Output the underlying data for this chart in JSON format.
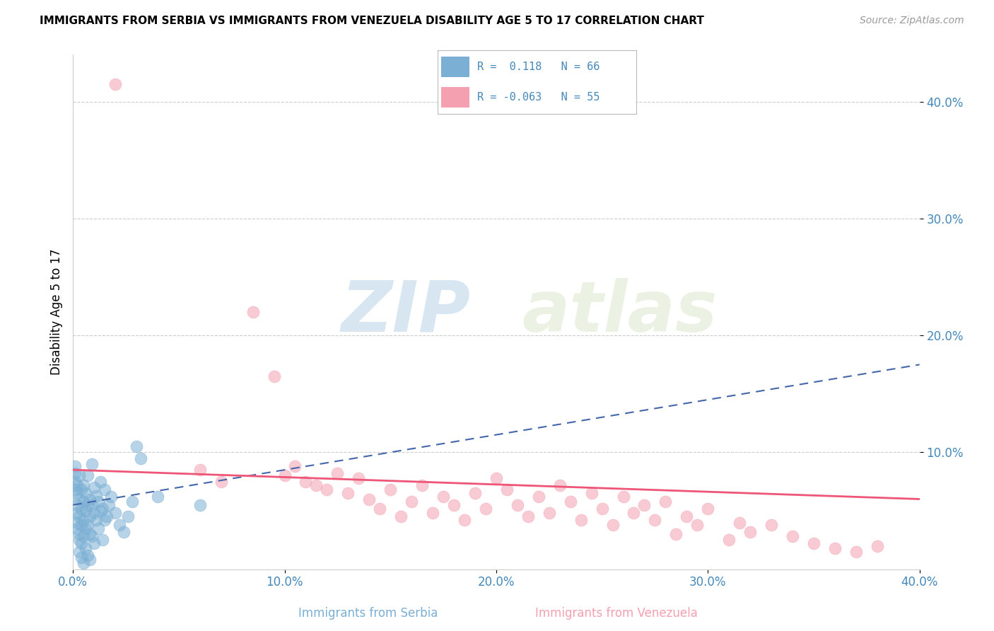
{
  "title": "IMMIGRANTS FROM SERBIA VS IMMIGRANTS FROM VENEZUELA DISABILITY AGE 5 TO 17 CORRELATION CHART",
  "source": "Source: ZipAtlas.com",
  "xlabel_serbia": "Immigrants from Serbia",
  "xlabel_venezuela": "Immigrants from Venezuela",
  "ylabel": "Disability Age 5 to 17",
  "xlim": [
    0.0,
    0.4
  ],
  "ylim": [
    0.0,
    0.44
  ],
  "xticks": [
    0.0,
    0.1,
    0.2,
    0.3,
    0.4
  ],
  "yticks": [
    0.1,
    0.2,
    0.3,
    0.4
  ],
  "serbia_R": 0.118,
  "serbia_N": 66,
  "venezuela_R": -0.063,
  "venezuela_N": 55,
  "serbia_color": "#7BAFD4",
  "venezuela_color": "#F4A0B0",
  "serbia_line_color": "#4466AA",
  "venezuela_line_color": "#EE5577",
  "watermark_color": "#D5E8F0",
  "serbia_points": [
    [
      0.001,
      0.088
    ],
    [
      0.001,
      0.082
    ],
    [
      0.001,
      0.075
    ],
    [
      0.001,
      0.068
    ],
    [
      0.002,
      0.072
    ],
    [
      0.002,
      0.065
    ],
    [
      0.002,
      0.055
    ],
    [
      0.002,
      0.048
    ],
    [
      0.002,
      0.04
    ],
    [
      0.002,
      0.035
    ],
    [
      0.003,
      0.08
    ],
    [
      0.003,
      0.06
    ],
    [
      0.003,
      0.045
    ],
    [
      0.003,
      0.03
    ],
    [
      0.003,
      0.025
    ],
    [
      0.003,
      0.015
    ],
    [
      0.004,
      0.068
    ],
    [
      0.004,
      0.052
    ],
    [
      0.004,
      0.038
    ],
    [
      0.004,
      0.022
    ],
    [
      0.004,
      0.01
    ],
    [
      0.005,
      0.072
    ],
    [
      0.005,
      0.058
    ],
    [
      0.005,
      0.042
    ],
    [
      0.005,
      0.028
    ],
    [
      0.005,
      0.005
    ],
    [
      0.006,
      0.065
    ],
    [
      0.006,
      0.05
    ],
    [
      0.006,
      0.035
    ],
    [
      0.006,
      0.018
    ],
    [
      0.007,
      0.08
    ],
    [
      0.007,
      0.055
    ],
    [
      0.007,
      0.038
    ],
    [
      0.007,
      0.012
    ],
    [
      0.008,
      0.06
    ],
    [
      0.008,
      0.045
    ],
    [
      0.008,
      0.03
    ],
    [
      0.008,
      0.008
    ],
    [
      0.009,
      0.09
    ],
    [
      0.009,
      0.055
    ],
    [
      0.009,
      0.028
    ],
    [
      0.01,
      0.07
    ],
    [
      0.01,
      0.048
    ],
    [
      0.01,
      0.022
    ],
    [
      0.011,
      0.063
    ],
    [
      0.011,
      0.042
    ],
    [
      0.012,
      0.058
    ],
    [
      0.012,
      0.035
    ],
    [
      0.013,
      0.075
    ],
    [
      0.013,
      0.05
    ],
    [
      0.014,
      0.052
    ],
    [
      0.014,
      0.025
    ],
    [
      0.015,
      0.068
    ],
    [
      0.015,
      0.042
    ],
    [
      0.016,
      0.045
    ],
    [
      0.017,
      0.055
    ],
    [
      0.018,
      0.062
    ],
    [
      0.02,
      0.048
    ],
    [
      0.022,
      0.038
    ],
    [
      0.024,
      0.032
    ],
    [
      0.026,
      0.045
    ],
    [
      0.028,
      0.058
    ],
    [
      0.03,
      0.105
    ],
    [
      0.032,
      0.095
    ],
    [
      0.04,
      0.062
    ],
    [
      0.06,
      0.055
    ]
  ],
  "venezuela_points": [
    [
      0.02,
      0.415
    ],
    [
      0.06,
      0.085
    ],
    [
      0.07,
      0.075
    ],
    [
      0.085,
      0.22
    ],
    [
      0.095,
      0.165
    ],
    [
      0.1,
      0.08
    ],
    [
      0.105,
      0.088
    ],
    [
      0.11,
      0.075
    ],
    [
      0.115,
      0.072
    ],
    [
      0.12,
      0.068
    ],
    [
      0.125,
      0.082
    ],
    [
      0.13,
      0.065
    ],
    [
      0.135,
      0.078
    ],
    [
      0.14,
      0.06
    ],
    [
      0.145,
      0.052
    ],
    [
      0.15,
      0.068
    ],
    [
      0.155,
      0.045
    ],
    [
      0.16,
      0.058
    ],
    [
      0.165,
      0.072
    ],
    [
      0.17,
      0.048
    ],
    [
      0.175,
      0.062
    ],
    [
      0.18,
      0.055
    ],
    [
      0.185,
      0.042
    ],
    [
      0.19,
      0.065
    ],
    [
      0.195,
      0.052
    ],
    [
      0.2,
      0.078
    ],
    [
      0.205,
      0.068
    ],
    [
      0.21,
      0.055
    ],
    [
      0.215,
      0.045
    ],
    [
      0.22,
      0.062
    ],
    [
      0.225,
      0.048
    ],
    [
      0.23,
      0.072
    ],
    [
      0.235,
      0.058
    ],
    [
      0.24,
      0.042
    ],
    [
      0.245,
      0.065
    ],
    [
      0.25,
      0.052
    ],
    [
      0.255,
      0.038
    ],
    [
      0.26,
      0.062
    ],
    [
      0.265,
      0.048
    ],
    [
      0.27,
      0.055
    ],
    [
      0.275,
      0.042
    ],
    [
      0.28,
      0.058
    ],
    [
      0.285,
      0.03
    ],
    [
      0.29,
      0.045
    ],
    [
      0.295,
      0.038
    ],
    [
      0.3,
      0.052
    ],
    [
      0.31,
      0.025
    ],
    [
      0.315,
      0.04
    ],
    [
      0.32,
      0.032
    ],
    [
      0.33,
      0.038
    ],
    [
      0.34,
      0.028
    ],
    [
      0.35,
      0.022
    ],
    [
      0.36,
      0.018
    ],
    [
      0.37,
      0.015
    ],
    [
      0.38,
      0.02
    ]
  ],
  "serbia_trend": [
    0.0,
    0.4,
    0.055,
    0.175
  ],
  "venezuela_trend": [
    0.0,
    0.4,
    0.085,
    0.06
  ]
}
